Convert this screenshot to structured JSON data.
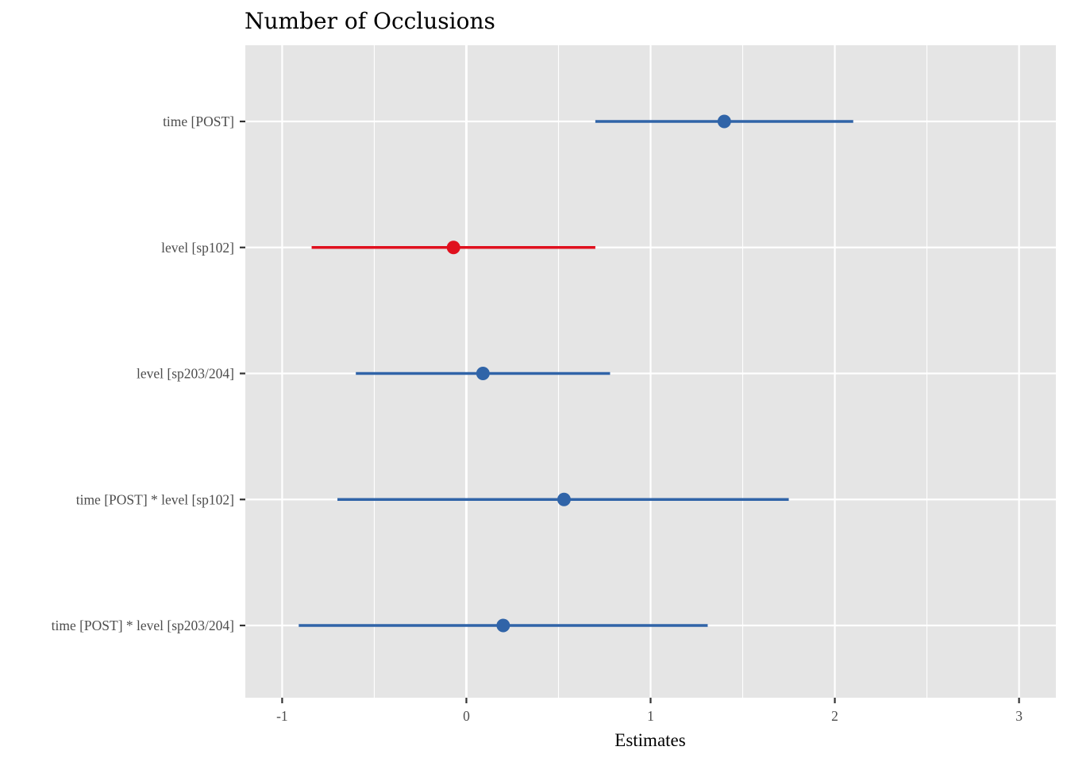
{
  "chart_data": {
    "type": "forest",
    "title": "Number of Occlusions",
    "xlabel": "Estimates",
    "ylabel": "",
    "xlim": [
      -1.2,
      3.2
    ],
    "x_ticks": [
      -1,
      0,
      1,
      2,
      3
    ],
    "x_tick_labels": [
      "-1",
      "0",
      "1",
      "2",
      "3"
    ],
    "grid": true,
    "legend": "none",
    "terms": [
      {
        "label": "time [POST]",
        "estimate": 1.4,
        "conf_low": 0.7,
        "conf_high": 2.1,
        "color": "#3064a8"
      },
      {
        "label": "level [sp102]",
        "estimate": -0.07,
        "conf_low": -0.84,
        "conf_high": 0.7,
        "color": "#e0101e"
      },
      {
        "label": "level [sp203/204]",
        "estimate": 0.09,
        "conf_low": -0.6,
        "conf_high": 0.78,
        "color": "#3064a8"
      },
      {
        "label": "time [POST] * level [sp102]",
        "estimate": 0.53,
        "conf_low": -0.7,
        "conf_high": 1.75,
        "color": "#3064a8"
      },
      {
        "label": "time [POST] * level [sp203/204]",
        "estimate": 0.2,
        "conf_low": -0.91,
        "conf_high": 1.31,
        "color": "#3064a8"
      }
    ],
    "colors": {
      "panel_background": "#e5e5e5",
      "grid": "#ffffff",
      "positive": "#3064a8",
      "negative": "#e0101e"
    }
  }
}
